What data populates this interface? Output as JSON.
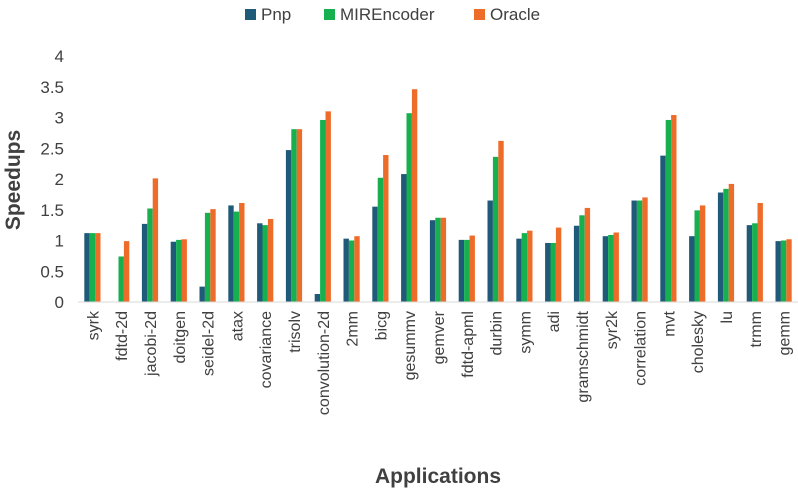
{
  "chart_data": {
    "type": "bar",
    "title": "",
    "xlabel": "Applications",
    "ylabel": "Speedups",
    "ylim": [
      0,
      4
    ],
    "yticks": [
      "0",
      "0.5",
      "1",
      "1.5",
      "2",
      "2.5",
      "3",
      "3.5",
      "4"
    ],
    "grid": false,
    "legend_position": "top-center",
    "categories": [
      "syrk",
      "fdtd-2d",
      "jacobi-2d",
      "doitgen",
      "seidel-2d",
      "atax",
      "covariance",
      "trisolv",
      "convolution-2d",
      "2mm",
      "bicg",
      "gesummv",
      "gemver",
      "fdtd-apml",
      "durbin",
      "symm",
      "adi",
      "gramschmidt",
      "syr2k",
      "correlation",
      "mvt",
      "cholesky",
      "lu",
      "trmm",
      "gemm"
    ],
    "series": [
      {
        "name": "Pnp",
        "color": "#1f5a78",
        "values": [
          1.12,
          0.0,
          1.27,
          0.98,
          0.25,
          1.57,
          1.28,
          2.47,
          0.13,
          1.03,
          1.55,
          2.08,
          1.33,
          1.01,
          1.65,
          1.03,
          0.96,
          1.24,
          1.07,
          1.65,
          2.38,
          1.07,
          1.78,
          1.25,
          0.99
        ]
      },
      {
        "name": "MIREncoder",
        "color": "#17b04f",
        "values": [
          1.12,
          0.74,
          1.52,
          1.01,
          1.45,
          1.47,
          1.25,
          2.81,
          2.96,
          1.0,
          2.02,
          3.07,
          1.37,
          1.01,
          2.36,
          1.12,
          0.96,
          1.41,
          1.09,
          1.65,
          2.96,
          1.49,
          1.84,
          1.28,
          1.0
        ]
      },
      {
        "name": "Oracle",
        "color": "#ee6c2a",
        "values": [
          1.12,
          0.99,
          2.01,
          1.02,
          1.51,
          1.61,
          1.35,
          2.81,
          3.1,
          1.07,
          2.39,
          3.46,
          1.37,
          1.08,
          2.62,
          1.16,
          1.21,
          1.53,
          1.13,
          1.7,
          3.04,
          1.57,
          1.92,
          1.61,
          1.02
        ]
      }
    ]
  }
}
